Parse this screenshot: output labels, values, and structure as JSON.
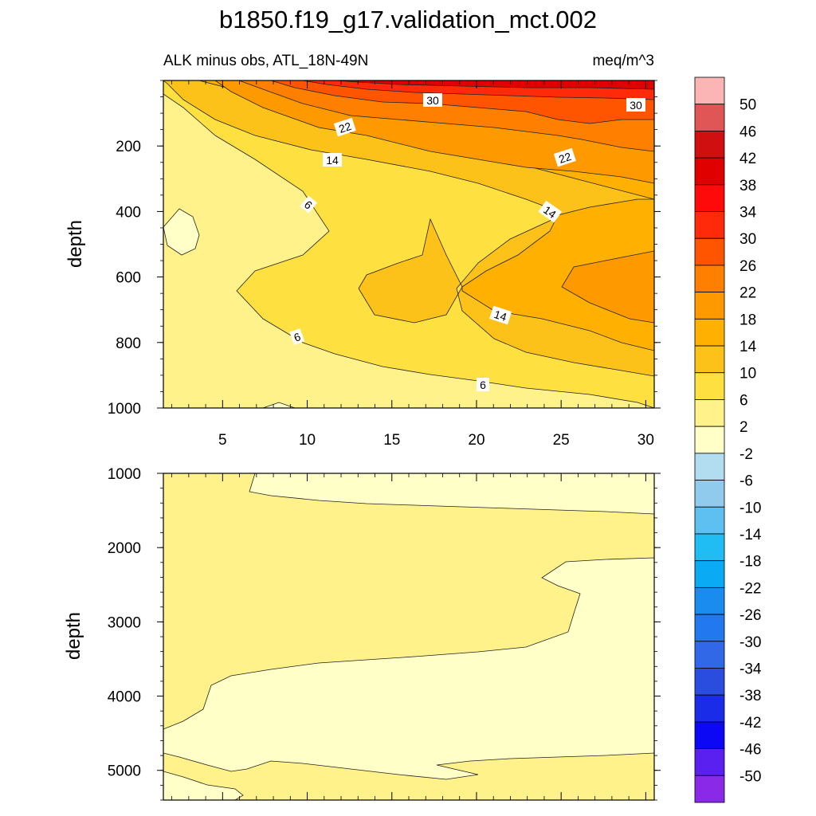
{
  "chart_data": {
    "type": "contour",
    "title": "b1850.f19_g17.validation_mct.002",
    "subtitle_left": "ALK minus obs, ATL_18N-49N",
    "subtitle_right": "meq/m^3",
    "xlabel": "",
    "ylabel": "depth",
    "x_ticks": [
      "5",
      "10",
      "15",
      "20",
      "25",
      "30"
    ],
    "upper_panel": {
      "ylim": [
        1000,
        0
      ],
      "y_ticks": [
        "200",
        "400",
        "600",
        "800",
        "1000"
      ],
      "contour_labels": [
        "30",
        "30",
        "22",
        "22",
        "14",
        "14",
        "14",
        "6",
        "6",
        "6"
      ]
    },
    "lower_panel": {
      "ylim": [
        5400,
        1000
      ],
      "y_ticks": [
        "1000",
        "2000",
        "3000",
        "4000",
        "5000"
      ]
    },
    "colorbar": {
      "labels": [
        "50",
        "46",
        "42",
        "38",
        "34",
        "30",
        "26",
        "22",
        "18",
        "14",
        "10",
        "6",
        "2",
        "-2",
        "-6",
        "-10",
        "-14",
        "-18",
        "-22",
        "-26",
        "-30",
        "-34",
        "-38",
        "-42",
        "-46",
        "-50"
      ],
      "colors": [
        "#fbb5b5",
        "#e05555",
        "#d01010",
        "#e00000",
        "#ff0a0a",
        "#ff2a0a",
        "#ff5500",
        "#ff7f00",
        "#ff9900",
        "#ffb000",
        "#fcc21a",
        "#fee040",
        "#fff28a",
        "#ffffc8",
        "#b2dcf0",
        "#90cbee",
        "#5ec0f0",
        "#20bdf5",
        "#0aaaf5",
        "#1a8cf0",
        "#2278ee",
        "#3068e8",
        "#2a4de0",
        "#1a2ce8",
        "#0c08f5",
        "#5a20f0",
        "#8a2ae8"
      ]
    }
  }
}
